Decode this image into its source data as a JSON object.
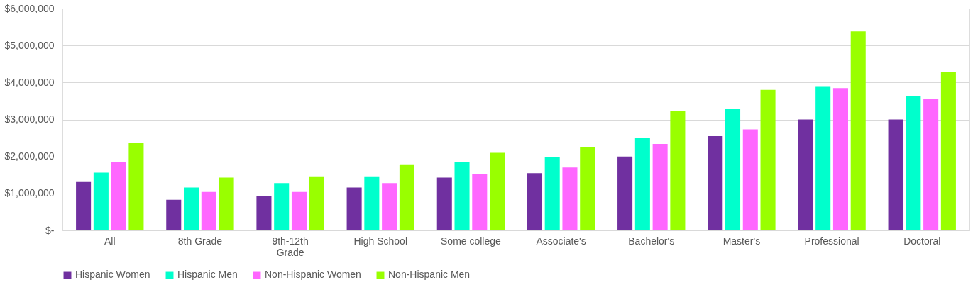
{
  "chart_data": {
    "type": "bar",
    "categories": [
      "All",
      "8th Grade",
      "9th-12th Grade",
      "High School",
      "Some college",
      "Associate's",
      "Bachelor's",
      "Master's",
      "Professional",
      "Doctoral"
    ],
    "series": [
      {
        "name": "Hispanic Women",
        "color": "#7030a0",
        "values": [
          1310000,
          830000,
          920000,
          1160000,
          1430000,
          1550000,
          2000000,
          2550000,
          3000000,
          3000000
        ]
      },
      {
        "name": "Hispanic Men",
        "color": "#00ffcc",
        "values": [
          1560000,
          1160000,
          1280000,
          1460000,
          1860000,
          1980000,
          2490000,
          3280000,
          3880000,
          3640000
        ]
      },
      {
        "name": "Non-Hispanic Women",
        "color": "#ff66ff",
        "values": [
          1840000,
          1040000,
          1040000,
          1280000,
          1520000,
          1700000,
          2340000,
          2730000,
          3850000,
          3550000
        ]
      },
      {
        "name": "Non-Hispanic Men",
        "color": "#99ff00",
        "values": [
          2370000,
          1430000,
          1460000,
          1770000,
          2100000,
          2250000,
          3220000,
          3800000,
          5380000,
          4280000
        ]
      }
    ],
    "ylim": [
      0,
      6000000
    ],
    "yticks": [
      {
        "value": 0,
        "label": "$-"
      },
      {
        "value": 1000000,
        "label": "$1,000,000"
      },
      {
        "value": 2000000,
        "label": "$2,000,000"
      },
      {
        "value": 3000000,
        "label": "$3,000,000"
      },
      {
        "value": 4000000,
        "label": "$4,000,000"
      },
      {
        "value": 5000000,
        "label": "$5,000,000"
      },
      {
        "value": 6000000,
        "label": "$6,000,000"
      }
    ],
    "grid": "y",
    "legend": "bottom"
  }
}
